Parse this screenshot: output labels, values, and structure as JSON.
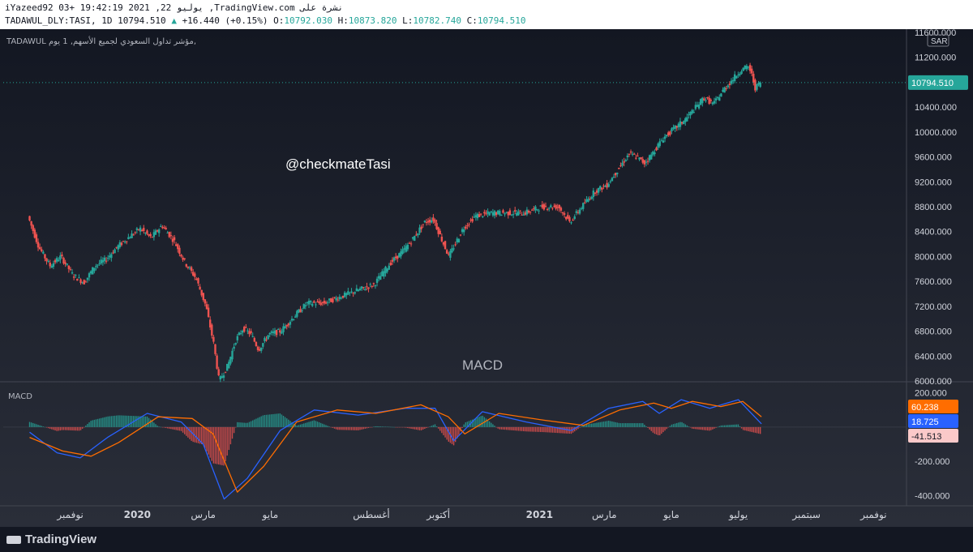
{
  "header": {
    "line1": "iYazeed92 03+ 19:42:19 2021 ,22 يوليو ,TradingView.com نشرة على",
    "symbol": "TADAWUL_DLY:TASI, 1D",
    "last": "10794.510",
    "change_arrow": "▲",
    "change": "+16.440 (+0.15%)",
    "o_label": "O:",
    "o": "10792.030",
    "h_label": "H:",
    "h": "10873.820",
    "l_label": "L:",
    "l": "10782.740",
    "c_label": "C:",
    "c": "10794.510"
  },
  "pane_title": "TADAWUL مؤشر تداول السعودي لجميع الأسهم, 1 يوم,",
  "watermark": "@checkmateTasi",
  "macd_annotation": "MACD",
  "macd_pane_title": "MACD",
  "currency": "SAR",
  "footer": {
    "brand": "TradingView"
  },
  "colors": {
    "up": "#26a69a",
    "down": "#ef5350",
    "macd": "#2962ff",
    "signal": "#ff6d00",
    "bg": "#131722"
  },
  "chart_data": [
    {
      "type": "candlestick",
      "title": "مؤشر تداول السعودي لجميع الأسهم",
      "ylim": [
        6000,
        11600
      ],
      "yticks": [
        6000,
        6400,
        6800,
        7200,
        7600,
        8000,
        8400,
        8800,
        9200,
        9600,
        10000,
        10400,
        10800,
        11200,
        11600
      ],
      "ytick_labels": [
        "6000.000",
        "6400.000",
        "6800.000",
        "7200.000",
        "7600.000",
        "8000.000",
        "8400.000",
        "8800.000",
        "9200.000",
        "9600.000",
        "10000.000",
        "10400.000",
        "10800.000",
        "11200.000",
        "11600.000"
      ],
      "last_price": 10794.51,
      "last_price_label": "10794.510",
      "x_ticks": [
        {
          "label": "نوفمبر",
          "date": "2019-11"
        },
        {
          "label": "2020",
          "date": "2020-01",
          "bold": true
        },
        {
          "label": "مارس",
          "date": "2020-03"
        },
        {
          "label": "مايو",
          "date": "2020-05"
        },
        {
          "label": "أغسطس",
          "date": "2020-08"
        },
        {
          "label": "أكتوبر",
          "date": "2020-10"
        },
        {
          "label": "2021",
          "date": "2021-01",
          "bold": true
        },
        {
          "label": "مارس",
          "date": "2021-03"
        },
        {
          "label": "مايو",
          "date": "2021-05"
        },
        {
          "label": "يوليو",
          "date": "2021-07"
        },
        {
          "label": "سبتمبر",
          "date": "2021-09"
        },
        {
          "label": "نوفمبر",
          "date": "2021-11"
        }
      ],
      "series": [
        {
          "x": "2019-09-25",
          "y": 8650
        },
        {
          "x": "2019-10-05",
          "y": 8150
        },
        {
          "x": "2019-10-15",
          "y": 7850
        },
        {
          "x": "2019-10-25",
          "y": 8000
        },
        {
          "x": "2019-11-05",
          "y": 7700
        },
        {
          "x": "2019-11-15",
          "y": 7580
        },
        {
          "x": "2019-11-25",
          "y": 7850
        },
        {
          "x": "2019-12-05",
          "y": 7950
        },
        {
          "x": "2019-12-15",
          "y": 8150
        },
        {
          "x": "2019-12-25",
          "y": 8300
        },
        {
          "x": "2020-01-05",
          "y": 8450
        },
        {
          "x": "2020-01-15",
          "y": 8300
        },
        {
          "x": "2020-01-25",
          "y": 8500
        },
        {
          "x": "2020-02-05",
          "y": 8250
        },
        {
          "x": "2020-02-15",
          "y": 7900
        },
        {
          "x": "2020-02-25",
          "y": 7650
        },
        {
          "x": "2020-03-05",
          "y": 7200
        },
        {
          "x": "2020-03-12",
          "y": 6600
        },
        {
          "x": "2020-03-17",
          "y": 6000
        },
        {
          "x": "2020-03-25",
          "y": 6250
        },
        {
          "x": "2020-04-01",
          "y": 6650
        },
        {
          "x": "2020-04-08",
          "y": 6850
        },
        {
          "x": "2020-04-15",
          "y": 6750
        },
        {
          "x": "2020-04-22",
          "y": 6500
        },
        {
          "x": "2020-05-01",
          "y": 6750
        },
        {
          "x": "2020-05-12",
          "y": 6800
        },
        {
          "x": "2020-05-25",
          "y": 7050
        },
        {
          "x": "2020-06-05",
          "y": 7250
        },
        {
          "x": "2020-06-20",
          "y": 7250
        },
        {
          "x": "2020-07-05",
          "y": 7350
        },
        {
          "x": "2020-07-20",
          "y": 7450
        },
        {
          "x": "2020-08-05",
          "y": 7550
        },
        {
          "x": "2020-08-20",
          "y": 7900
        },
        {
          "x": "2020-09-01",
          "y": 8100
        },
        {
          "x": "2020-09-10",
          "y": 8300
        },
        {
          "x": "2020-09-20",
          "y": 8550
        },
        {
          "x": "2020-09-28",
          "y": 8600
        },
        {
          "x": "2020-10-05",
          "y": 8300
        },
        {
          "x": "2020-10-12",
          "y": 8000
        },
        {
          "x": "2020-10-25",
          "y": 8450
        },
        {
          "x": "2020-11-05",
          "y": 8650
        },
        {
          "x": "2020-11-20",
          "y": 8700
        },
        {
          "x": "2020-12-05",
          "y": 8700
        },
        {
          "x": "2020-12-20",
          "y": 8700
        },
        {
          "x": "2021-01-05",
          "y": 8800
        },
        {
          "x": "2021-01-20",
          "y": 8800
        },
        {
          "x": "2021-01-30",
          "y": 8550
        },
        {
          "x": "2021-02-10",
          "y": 8800
        },
        {
          "x": "2021-02-22",
          "y": 9050
        },
        {
          "x": "2021-03-05",
          "y": 9150
        },
        {
          "x": "2021-03-15",
          "y": 9400
        },
        {
          "x": "2021-03-25",
          "y": 9650
        },
        {
          "x": "2021-04-01",
          "y": 9600
        },
        {
          "x": "2021-04-08",
          "y": 9500
        },
        {
          "x": "2021-04-15",
          "y": 9650
        },
        {
          "x": "2021-04-25",
          "y": 9900
        },
        {
          "x": "2021-05-05",
          "y": 10050
        },
        {
          "x": "2021-05-15",
          "y": 10200
        },
        {
          "x": "2021-05-25",
          "y": 10400
        },
        {
          "x": "2021-06-01",
          "y": 10550
        },
        {
          "x": "2021-06-10",
          "y": 10450
        },
        {
          "x": "2021-06-20",
          "y": 10700
        },
        {
          "x": "2021-06-30",
          "y": 10900
        },
        {
          "x": "2021-07-05",
          "y": 11000
        },
        {
          "x": "2021-07-12",
          "y": 11050
        },
        {
          "x": "2021-07-15",
          "y": 10900
        },
        {
          "x": "2021-07-18",
          "y": 10700
        },
        {
          "x": "2021-07-22",
          "y": 10794.51
        }
      ]
    },
    {
      "type": "line",
      "title": "MACD",
      "ylim": [
        -460,
        260
      ],
      "yticks": [
        -400,
        -200,
        0,
        200
      ],
      "ytick_labels": [
        "-400.000",
        "-200.000",
        "",
        "200.000"
      ],
      "last_values": [
        {
          "label": "60.238",
          "value": 60.238,
          "color": "#ff6d00"
        },
        {
          "label": "18.725",
          "value": 18.725,
          "color": "#2962ff"
        },
        {
          "label": "-41.513",
          "value": -41.513,
          "color": "#ef5350"
        }
      ],
      "series": [
        {
          "name": "MACD",
          "values": [
            {
              "x": "2019-09-25",
              "y": -30
            },
            {
              "x": "2019-10-20",
              "y": -150
            },
            {
              "x": "2019-11-10",
              "y": -180
            },
            {
              "x": "2019-12-05",
              "y": -60
            },
            {
              "x": "2020-01-10",
              "y": 80
            },
            {
              "x": "2020-02-10",
              "y": 30
            },
            {
              "x": "2020-03-01",
              "y": -100
            },
            {
              "x": "2020-03-20",
              "y": -420
            },
            {
              "x": "2020-04-10",
              "y": -300
            },
            {
              "x": "2020-05-10",
              "y": -20
            },
            {
              "x": "2020-06-10",
              "y": 100
            },
            {
              "x": "2020-07-20",
              "y": 70
            },
            {
              "x": "2020-09-01",
              "y": 110
            },
            {
              "x": "2020-09-28",
              "y": 110
            },
            {
              "x": "2020-10-15",
              "y": -80
            },
            {
              "x": "2020-11-10",
              "y": 90
            },
            {
              "x": "2020-12-20",
              "y": 30
            },
            {
              "x": "2021-01-30",
              "y": -20
            },
            {
              "x": "2021-03-05",
              "y": 110
            },
            {
              "x": "2021-04-05",
              "y": 150
            },
            {
              "x": "2021-04-20",
              "y": 80
            },
            {
              "x": "2021-05-10",
              "y": 160
            },
            {
              "x": "2021-06-05",
              "y": 110
            },
            {
              "x": "2021-07-01",
              "y": 160
            },
            {
              "x": "2021-07-22",
              "y": 18.725
            }
          ]
        },
        {
          "name": "Signal",
          "values": [
            {
              "x": "2019-09-25",
              "y": -60
            },
            {
              "x": "2019-10-25",
              "y": -140
            },
            {
              "x": "2019-11-20",
              "y": -170
            },
            {
              "x": "2019-12-15",
              "y": -90
            },
            {
              "x": "2020-01-20",
              "y": 60
            },
            {
              "x": "2020-02-20",
              "y": 50
            },
            {
              "x": "2020-03-10",
              "y": -40
            },
            {
              "x": "2020-04-01",
              "y": -380
            },
            {
              "x": "2020-04-25",
              "y": -230
            },
            {
              "x": "2020-05-25",
              "y": 30
            },
            {
              "x": "2020-07-01",
              "y": 100
            },
            {
              "x": "2020-08-05",
              "y": 80
            },
            {
              "x": "2020-09-15",
              "y": 130
            },
            {
              "x": "2020-10-10",
              "y": 60
            },
            {
              "x": "2020-10-25",
              "y": -40
            },
            {
              "x": "2020-11-25",
              "y": 80
            },
            {
              "x": "2021-01-05",
              "y": 40
            },
            {
              "x": "2021-02-10",
              "y": 10
            },
            {
              "x": "2021-03-15",
              "y": 100
            },
            {
              "x": "2021-04-15",
              "y": 140
            },
            {
              "x": "2021-05-01",
              "y": 110
            },
            {
              "x": "2021-05-20",
              "y": 150
            },
            {
              "x": "2021-06-15",
              "y": 120
            },
            {
              "x": "2021-07-05",
              "y": 150
            },
            {
              "x": "2021-07-22",
              "y": 60.238
            }
          ]
        }
      ]
    }
  ]
}
